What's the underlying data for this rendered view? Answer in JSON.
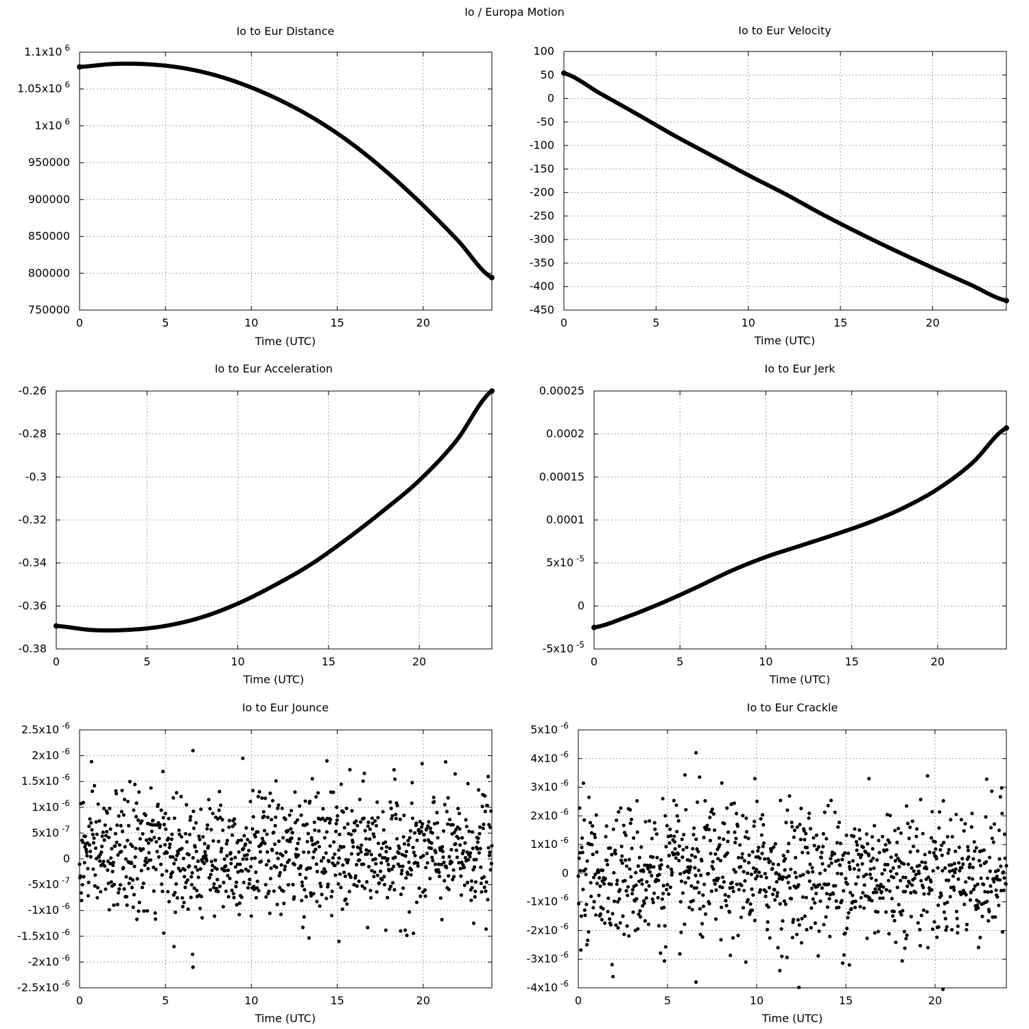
{
  "figure_title": "Io / Europa Motion",
  "chart_data": [
    {
      "type": "line",
      "title": "Io to Eur Distance",
      "xlabel": "Time (UTC)",
      "ylabel": "",
      "xlim": [
        0,
        24
      ],
      "ylim": [
        750000,
        1100000
      ],
      "xticks": [
        0,
        5,
        10,
        15,
        20
      ],
      "xtick_labels": [
        "0",
        "5",
        "10",
        "15",
        "20"
      ],
      "yticks": [
        750000,
        800000,
        850000,
        900000,
        950000,
        1000000,
        1050000,
        1100000
      ],
      "ytick_labels": [
        {
          "base": "750000"
        },
        {
          "base": "800000"
        },
        {
          "base": "850000"
        },
        {
          "base": "900000"
        },
        {
          "base": "950000"
        },
        {
          "base": "1x10",
          "exp": "6"
        },
        {
          "base": "1.05x10",
          "exp": "6"
        },
        {
          "base": "1.1x10",
          "exp": "6"
        }
      ],
      "grid": true,
      "series": [
        {
          "name": "distance",
          "x": [
            0,
            2,
            4,
            6,
            8,
            10,
            12,
            14,
            16,
            18,
            20,
            22,
            24
          ],
          "y": [
            1080000,
            1084000,
            1083500,
            1078500,
            1068000,
            1052000,
            1031000,
            1005000,
            973000,
            935000,
            892000,
            845000,
            794000
          ]
        }
      ]
    },
    {
      "type": "line",
      "title": "Io to Eur Velocity",
      "xlabel": "Time (UTC)",
      "ylabel": "",
      "xlim": [
        0,
        24
      ],
      "ylim": [
        -450,
        100
      ],
      "xticks": [
        0,
        5,
        10,
        15,
        20
      ],
      "xtick_labels": [
        "0",
        "5",
        "10",
        "15",
        "20"
      ],
      "yticks": [
        -450,
        -400,
        -350,
        -300,
        -250,
        -200,
        -150,
        -100,
        -50,
        0,
        50,
        100
      ],
      "ytick_labels": [
        {
          "base": "-450"
        },
        {
          "base": "-400"
        },
        {
          "base": "-350"
        },
        {
          "base": "-300"
        },
        {
          "base": "-250"
        },
        {
          "base": "-200"
        },
        {
          "base": "-150"
        },
        {
          "base": "-100"
        },
        {
          "base": "-50"
        },
        {
          "base": "0"
        },
        {
          "base": "50"
        },
        {
          "base": "100"
        }
      ],
      "grid": true,
      "series": [
        {
          "name": "velocity",
          "x": [
            0,
            2,
            4,
            6,
            8,
            10,
            12,
            14,
            16,
            18,
            20,
            22,
            24
          ],
          "y": [
            54,
            10,
            -34,
            -79,
            -121,
            -163,
            -203,
            -246,
            -286,
            -324,
            -360,
            -395,
            -430
          ]
        }
      ]
    },
    {
      "type": "line",
      "title": "Io to Eur Acceleration",
      "xlabel": "Time (UTC)",
      "ylabel": "",
      "xlim": [
        0,
        24
      ],
      "ylim": [
        -0.38,
        -0.26
      ],
      "xticks": [
        0,
        5,
        10,
        15,
        20
      ],
      "xtick_labels": [
        "0",
        "5",
        "10",
        "15",
        "20"
      ],
      "yticks": [
        -0.38,
        -0.36,
        -0.34,
        -0.32,
        -0.3,
        -0.28,
        -0.26
      ],
      "ytick_labels": [
        {
          "base": "-0.38"
        },
        {
          "base": "-0.36"
        },
        {
          "base": "-0.34"
        },
        {
          "base": "-0.32"
        },
        {
          "base": "-0.3"
        },
        {
          "base": "-0.28"
        },
        {
          "base": "-0.26"
        }
      ],
      "grid": true,
      "series": [
        {
          "name": "acceleration",
          "x": [
            0,
            2,
            4,
            6,
            8,
            10,
            12,
            14,
            16,
            18,
            20,
            22,
            24
          ],
          "y": [
            -0.3693,
            -0.3712,
            -0.3711,
            -0.3693,
            -0.3653,
            -0.3589,
            -0.3505,
            -0.3408,
            -0.3289,
            -0.3158,
            -0.3016,
            -0.2836,
            -0.26
          ]
        }
      ]
    },
    {
      "type": "line",
      "title": "Io to Eur Jerk",
      "xlabel": "Time (UTC)",
      "ylabel": "",
      "xlim": [
        0,
        24
      ],
      "ylim": [
        -5e-05,
        0.00025
      ],
      "xticks": [
        0,
        5,
        10,
        15,
        20
      ],
      "xtick_labels": [
        "0",
        "5",
        "10",
        "15",
        "20"
      ],
      "yticks": [
        -5e-05,
        0,
        5e-05,
        0.0001,
        0.00015,
        0.0002,
        0.00025
      ],
      "ytick_labels": [
        {
          "base": "-5x10",
          "exp": "-5"
        },
        {
          "base": "0"
        },
        {
          "base": "5x10",
          "exp": "-5"
        },
        {
          "base": "0.0001"
        },
        {
          "base": "0.00015"
        },
        {
          "base": "0.0002"
        },
        {
          "base": "0.00025"
        }
      ],
      "grid": true,
      "series": [
        {
          "name": "jerk",
          "x": [
            0,
            2,
            4,
            6,
            8,
            10,
            12,
            14,
            16,
            18,
            20,
            22,
            24
          ],
          "y": [
            -2.5e-05,
            -1.2e-05,
            4e-06,
            2.2e-05,
            4.1e-05,
            5.7e-05,
            7e-05,
            8.3e-05,
            9.7e-05,
            0.000114,
            0.000136,
            0.000166,
            0.000207
          ]
        }
      ]
    },
    {
      "type": "scatter",
      "title": "Io to Eur Jounce",
      "xlabel": "Time (UTC)",
      "ylabel": "",
      "xlim": [
        0,
        24
      ],
      "ylim": [
        -2.5e-06,
        2.5e-06
      ],
      "xticks": [
        0,
        5,
        10,
        15,
        20
      ],
      "xtick_labels": [
        "0",
        "5",
        "10",
        "15",
        "20"
      ],
      "yticks": [
        -2.5e-06,
        -2e-06,
        -1.5e-06,
        -1e-06,
        -5e-07,
        0,
        5e-07,
        1e-06,
        1.5e-06,
        2e-06,
        2.5e-06
      ],
      "ytick_labels": [
        {
          "base": "-2.5x10",
          "exp": "-6"
        },
        {
          "base": "-2x10",
          "exp": "-6"
        },
        {
          "base": "-1.5x10",
          "exp": "-6"
        },
        {
          "base": "-1x10",
          "exp": "-6"
        },
        {
          "base": "-5x10",
          "exp": "-7"
        },
        {
          "base": "0"
        },
        {
          "base": "5x10",
          "exp": "-7"
        },
        {
          "base": "1x10",
          "exp": "-6"
        },
        {
          "base": "1.5x10",
          "exp": "-6"
        },
        {
          "base": "2x10",
          "exp": "-6"
        },
        {
          "base": "2.5x10",
          "exp": "-6"
        }
      ],
      "grid": true,
      "series": [
        {
          "name": "jounce",
          "x": [],
          "y": [],
          "n_points": 1000,
          "mean": 1e-07,
          "sd": 6e-07,
          "extremes": [
            [
              6.6,
              2.1e-06
            ],
            [
              6.6,
              -2.1e-06
            ],
            [
              9.5,
              1.95e-06
            ],
            [
              14.4,
              1.9e-06
            ],
            [
              5.5,
              -1.7e-06
            ],
            [
              15.1,
              -1.6e-06
            ]
          ]
        }
      ]
    },
    {
      "type": "scatter",
      "title": "Io to Eur Crackle",
      "xlabel": "Time (UTC)",
      "ylabel": "",
      "xlim": [
        0,
        24
      ],
      "ylim": [
        -4e-06,
        5e-06
      ],
      "xticks": [
        0,
        5,
        10,
        15,
        20
      ],
      "xtick_labels": [
        "0",
        "5",
        "10",
        "15",
        "20"
      ],
      "yticks": [
        -4e-06,
        -3e-06,
        -2e-06,
        -1e-06,
        0,
        1e-06,
        2e-06,
        3e-06,
        4e-06,
        5e-06
      ],
      "ytick_labels": [
        {
          "base": "-4x10",
          "exp": "-6"
        },
        {
          "base": "-3x10",
          "exp": "-6"
        },
        {
          "base": "-2x10",
          "exp": "-6"
        },
        {
          "base": "-1x10",
          "exp": "-6"
        },
        {
          "base": "0"
        },
        {
          "base": "1x10",
          "exp": "-6"
        },
        {
          "base": "2x10",
          "exp": "-6"
        },
        {
          "base": "3x10",
          "exp": "-6"
        },
        {
          "base": "4x10",
          "exp": "-6"
        },
        {
          "base": "5x10",
          "exp": "-6"
        }
      ],
      "grid": true,
      "series": [
        {
          "name": "crackle",
          "x": [],
          "y": [],
          "n_points": 1000,
          "mean": 0,
          "sd": 1.2e-06,
          "extremes": [
            [
              6.6,
              4.2e-06
            ],
            [
              6.6,
              -3.8e-06
            ],
            [
              11.3,
              -3.4e-06
            ],
            [
              9.9,
              3.3e-06
            ],
            [
              16.3,
              3.3e-06
            ],
            [
              15.2,
              -3.2e-06
            ]
          ]
        }
      ]
    }
  ]
}
